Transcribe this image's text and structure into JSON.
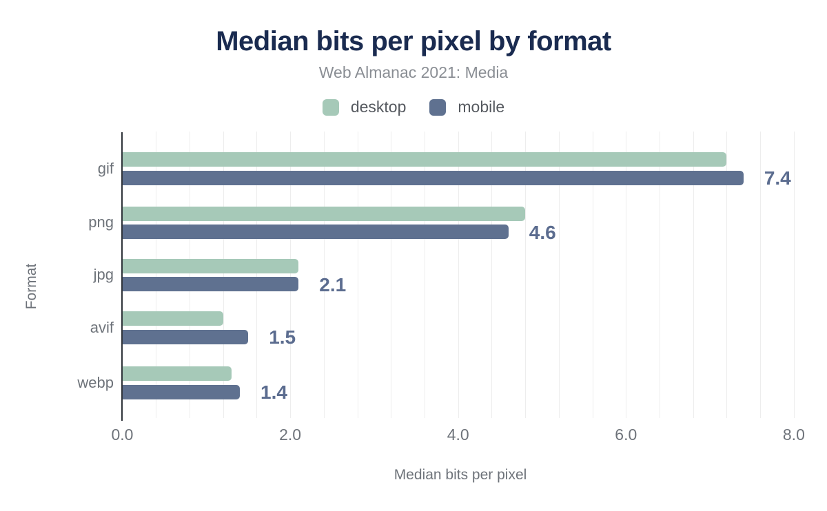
{
  "title": "Median bits per pixel by format",
  "subtitle": "Web Almanac 2021: Media",
  "legend": {
    "items": [
      {
        "label": "desktop",
        "color": "#a6c9b8"
      },
      {
        "label": "mobile",
        "color": "#5f7190"
      }
    ]
  },
  "chart_data": {
    "type": "bar",
    "orientation": "horizontal",
    "title": "Median bits per pixel by format",
    "subtitle": "Web Almanac 2021: Media",
    "categories": [
      "gif",
      "png",
      "jpg",
      "avif",
      "webp"
    ],
    "series": [
      {
        "name": "desktop",
        "color": "#a6c9b8",
        "values": [
          7.2,
          4.8,
          2.1,
          1.2,
          1.3
        ]
      },
      {
        "name": "mobile",
        "color": "#5f7190",
        "values": [
          7.4,
          4.6,
          2.1,
          1.5,
          1.4
        ]
      }
    ],
    "bar_labels": [
      "7.4",
      "4.6",
      "2.1",
      "1.5",
      "1.4"
    ],
    "bar_labels_series": "mobile",
    "xlabel": "Median bits per pixel",
    "ylabel": "Format",
    "xlim": [
      0,
      8.4
    ],
    "xticks": [
      "0.0",
      "2.0",
      "4.0",
      "6.0",
      "8.0"
    ],
    "xtick_values": [
      0,
      2,
      4,
      6,
      8
    ],
    "grid": "vertical minor gridlines every 0.4",
    "legend_position": "top"
  },
  "colors": {
    "title": "#1a2b50",
    "subtitle": "#8a8e94",
    "axis_text": "#6e737a",
    "value_label": "#5b6c8f",
    "gridline": "#ededed",
    "axis_line": "#2f343a",
    "background": "#ffffff"
  }
}
